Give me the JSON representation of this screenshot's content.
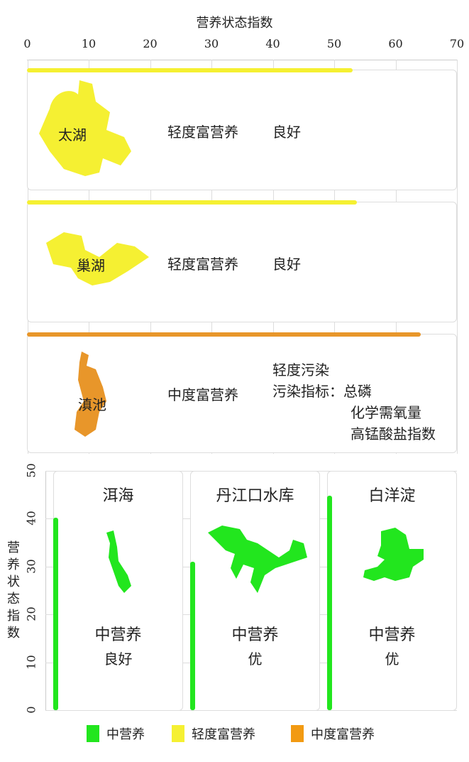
{
  "chart_data": [
    {
      "type": "bar",
      "orientation": "horizontal",
      "xlabel": "营养状态指数",
      "xlim": [
        0,
        70
      ],
      "ticks": [
        "0",
        "10",
        "20",
        "30",
        "40",
        "50",
        "60",
        "70"
      ],
      "items": [
        {
          "name": "太湖",
          "value": 53.1,
          "level": "轻度富营养",
          "quality": [
            "良好"
          ],
          "color": "#f5f032"
        },
        {
          "name": "巢湖",
          "value": 53.7,
          "level": "轻度富营养",
          "quality": [
            "良好"
          ],
          "color": "#f5f032"
        },
        {
          "name": "滇池",
          "value": 64.2,
          "level": "中度富营养",
          "quality": [
            "轻度污染",
            "污染指标：总磷",
            "化学需氧量",
            "高锰酸盐指数"
          ],
          "color": "#e8962a"
        }
      ]
    },
    {
      "type": "bar",
      "orientation": "vertical",
      "ylabel": "营养状态指数",
      "ylim": [
        0,
        50
      ],
      "ticks": [
        "0",
        "10",
        "20",
        "30",
        "40",
        "50"
      ],
      "items": [
        {
          "name": "洱海",
          "value": 40.2,
          "level": "中营养",
          "quality": "良好",
          "color": "#22e61e"
        },
        {
          "name": "丹江口水库",
          "value": 31.0,
          "level": "中营养",
          "quality": "优",
          "color": "#22e61e"
        },
        {
          "name": "白洋淀",
          "value": 44.8,
          "level": "中营养",
          "quality": "优",
          "color": "#22e61e"
        }
      ]
    }
  ],
  "legend": [
    {
      "label": "中营养",
      "color": "#22e61e"
    },
    {
      "label": "轻度富营养",
      "color": "#f5f032"
    },
    {
      "label": "中度富营养",
      "color": "#f29a12"
    }
  ]
}
